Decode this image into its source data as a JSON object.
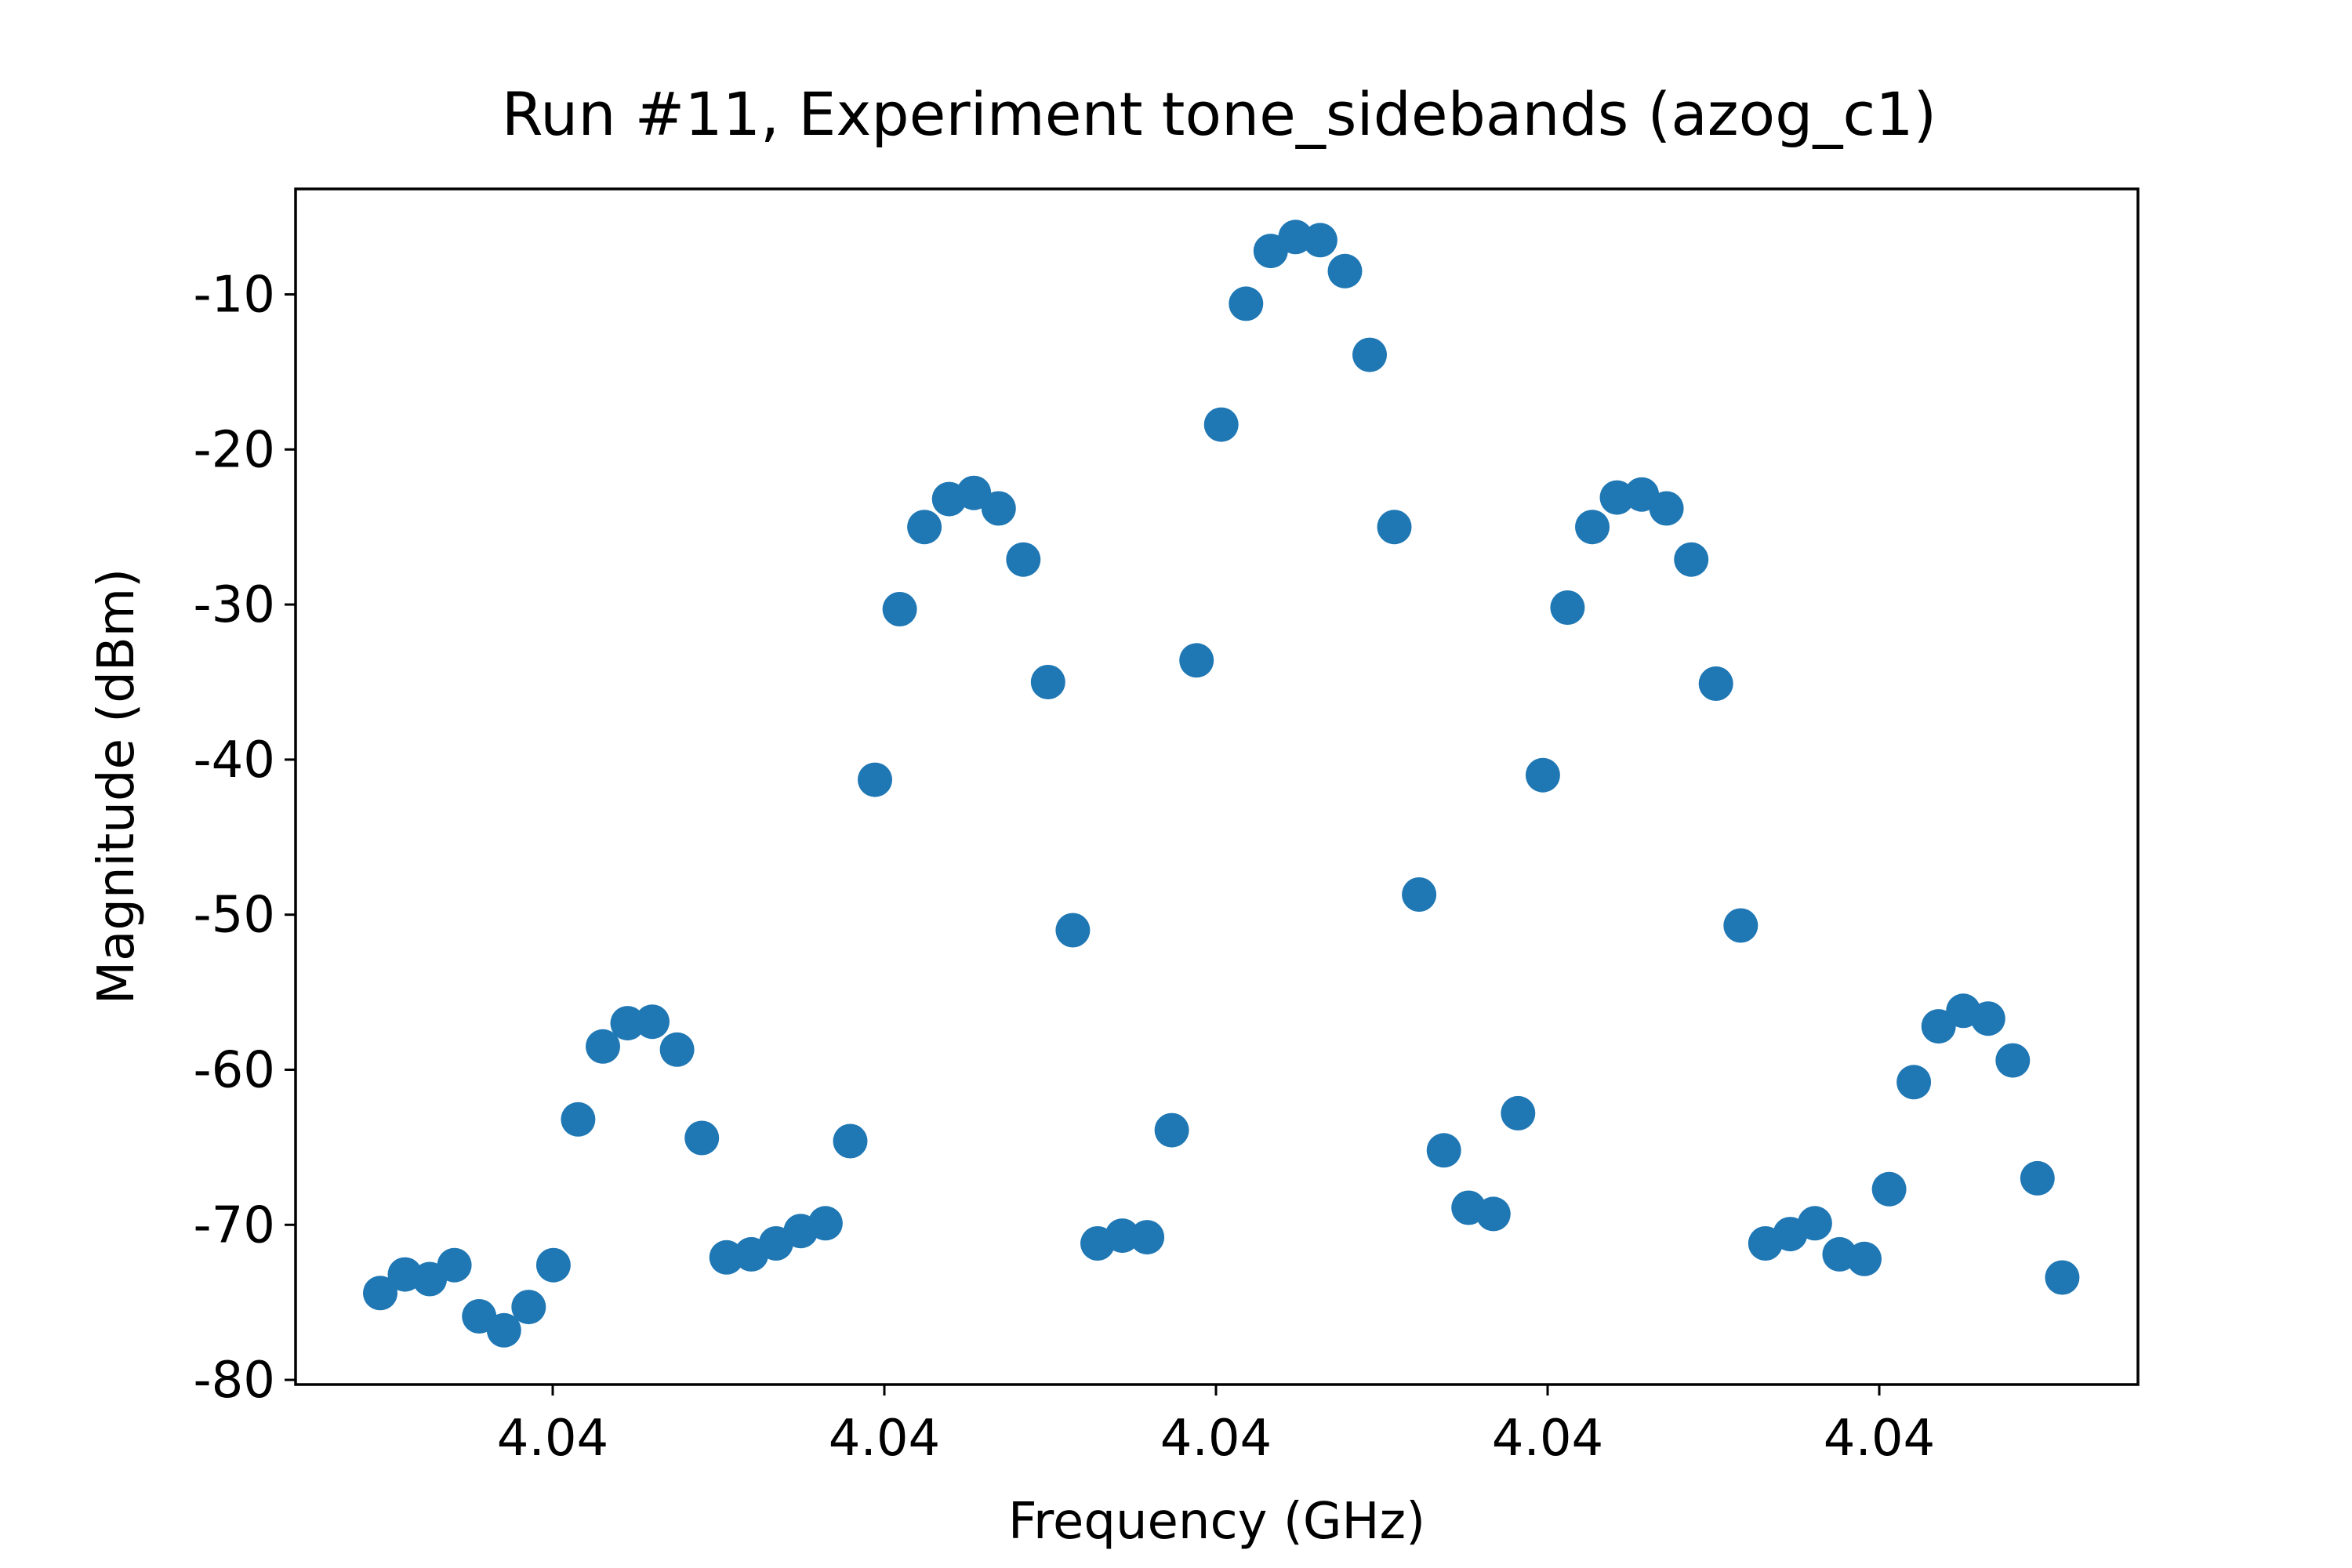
{
  "chart_data": {
    "type": "scatter",
    "title": "Run #11, Experiment tone_sidebands (azog_c1)",
    "xlabel": "Frequency (GHz)",
    "ylabel": "Magnitude (dBm)",
    "x_tick_labels": [
      "4.04",
      "4.04",
      "4.04",
      "4.04",
      "4.04",
      "4.04"
    ],
    "y_ticks": [
      -80,
      -70,
      -60,
      -50,
      -40,
      -30,
      -20,
      -10
    ],
    "y_tick_labels": [
      "-80",
      "-70",
      "-60",
      "-50",
      "-40",
      "-30",
      "-20",
      "-10"
    ],
    "ylim": [
      -80.3,
      -3.2
    ],
    "marker_color": "#1f77b4",
    "grid": false,
    "series": [
      {
        "values": [
          -74.4,
          -73.2,
          -73.5,
          -72.6,
          -75.9,
          -76.8,
          -75.3,
          -72.6,
          -63.2,
          -58.5,
          -57.0,
          -56.9,
          -58.7,
          -64.4,
          -72.1,
          -71.9,
          -71.2,
          -70.4,
          -69.9,
          -64.6,
          -41.3,
          -30.3,
          -25.0,
          -23.2,
          -22.8,
          -23.8,
          -27.1,
          -35.0,
          -51.0,
          -71.2,
          -70.7,
          -70.8,
          -63.9,
          -33.6,
          -18.4,
          -10.6,
          -7.2,
          -6.3,
          -6.5,
          -8.5,
          -13.9,
          -25.0,
          -48.7,
          -65.2,
          -68.9,
          -69.3,
          -62.8,
          -41.0,
          -30.2,
          -25.0,
          -23.1,
          -22.9,
          -23.8,
          -27.1,
          -35.1,
          -50.7,
          -71.2,
          -70.6,
          -69.9,
          -71.9,
          -72.2,
          -67.7,
          -60.8,
          -57.2,
          -56.2,
          -56.7,
          -59.4,
          -67.0,
          -73.4
        ]
      }
    ]
  }
}
